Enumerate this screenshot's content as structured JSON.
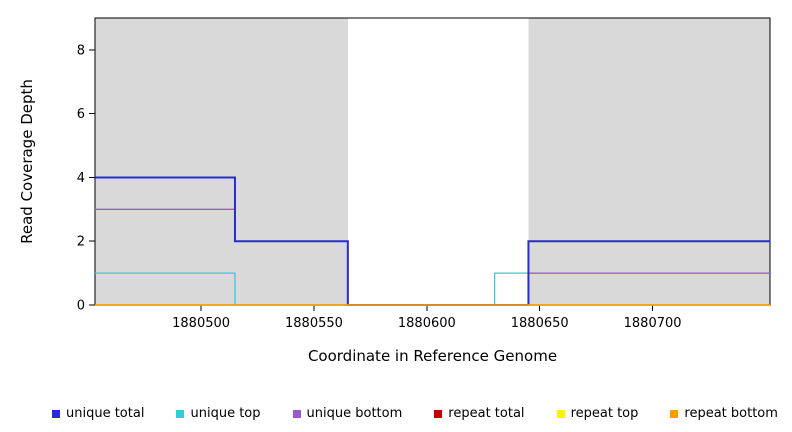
{
  "chart_data": {
    "type": "line",
    "style": "step",
    "title": "",
    "xlabel": "Coordinate in Reference Genome",
    "ylabel": "Read Coverage Depth",
    "x_domain": [
      1880453,
      1880752
    ],
    "y_domain": [
      0,
      9
    ],
    "x_ticks": [
      1880500,
      1880550,
      1880600,
      1880650,
      1880700
    ],
    "y_ticks": [
      0,
      2,
      4,
      6,
      8
    ],
    "background_color": "#ffffff",
    "shade_color": "#d9d9d9",
    "axis_color": "#000000",
    "shaded_regions": [
      {
        "x_start": 1880453,
        "x_end": 1880565
      },
      {
        "x_start": 1880645,
        "x_end": 1880752
      }
    ],
    "series": [
      {
        "id": "unique-top",
        "name": "unique top",
        "color": "#35cbd9",
        "width": 1.3,
        "segments": [
          {
            "x_start": 1880453,
            "x_end": 1880515,
            "y": 1
          },
          {
            "x_start": 1880515,
            "x_end": 1880630,
            "y": 0
          },
          {
            "x_start": 1880630,
            "x_end": 1880752,
            "y": 1
          }
        ]
      },
      {
        "id": "unique-bottom",
        "name": "unique bottom",
        "color": "#9b59d0",
        "width": 1.3,
        "segments": [
          {
            "x_start": 1880453,
            "x_end": 1880515,
            "y": 3
          },
          {
            "x_start": 1880515,
            "x_end": 1880565,
            "y": 2
          },
          {
            "x_start": 1880565,
            "x_end": 1880645,
            "y": 0
          },
          {
            "x_start": 1880645,
            "x_end": 1880752,
            "y": 1
          }
        ]
      },
      {
        "id": "unique-total",
        "name": "unique total",
        "color": "#2a2ad2",
        "width": 2,
        "segments": [
          {
            "x_start": 1880453,
            "x_end": 1880515,
            "y": 4
          },
          {
            "x_start": 1880515,
            "x_end": 1880565,
            "y": 2
          },
          {
            "x_start": 1880565,
            "x_end": 1880645,
            "y": 0
          },
          {
            "x_start": 1880645,
            "x_end": 1880752,
            "y": 2
          }
        ]
      },
      {
        "id": "repeat-total",
        "name": "repeat total",
        "color": "#c40000",
        "width": 1.3,
        "segments": [
          {
            "x_start": 1880453,
            "x_end": 1880752,
            "y": 0
          }
        ]
      },
      {
        "id": "repeat-top",
        "name": "repeat top",
        "color": "#ffef00",
        "width": 1.3,
        "segments": [
          {
            "x_start": 1880453,
            "x_end": 1880752,
            "y": 0
          }
        ]
      },
      {
        "id": "repeat-bottom",
        "name": "repeat bottom",
        "color": "#ff9d00",
        "width": 1.6,
        "segments": [
          {
            "x_start": 1880453,
            "x_end": 1880752,
            "y": 0
          }
        ]
      }
    ],
    "legend": [
      {
        "label": "unique total",
        "color": "#2a2ad2"
      },
      {
        "label": "unique top",
        "color": "#35cbd9"
      },
      {
        "label": "unique bottom",
        "color": "#9b59d0"
      },
      {
        "label": "repeat total",
        "color": "#c40000"
      },
      {
        "label": "repeat top",
        "color": "#ffef00"
      },
      {
        "label": "repeat bottom",
        "color": "#ff9d00"
      }
    ]
  }
}
